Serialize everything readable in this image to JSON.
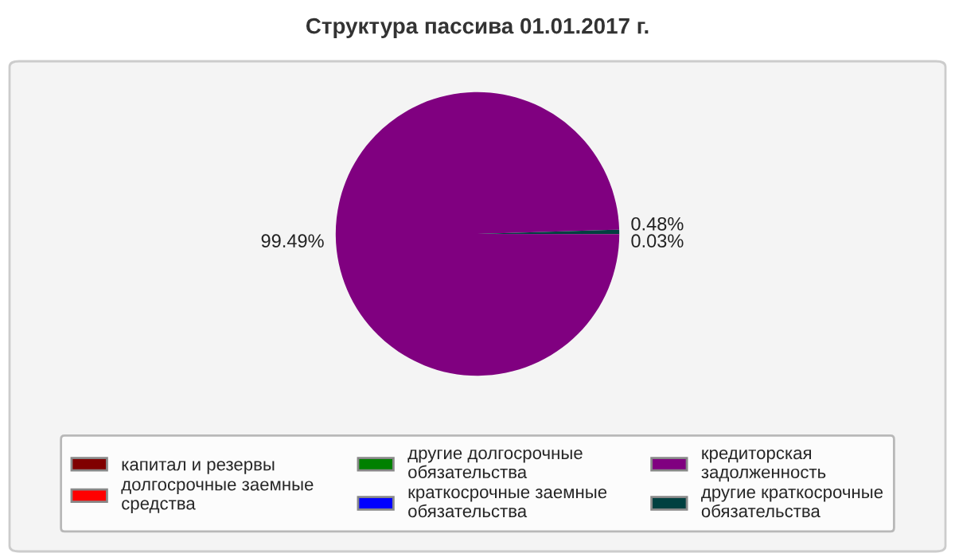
{
  "chart_data": {
    "type": "pie",
    "title": "Структура пассива 01.01.2017 г.",
    "categories": [
      "капитал и резервы",
      "долгосрочные заемные средства",
      "другие долгосрочные обязательства",
      "краткосрочные заемные обязательства",
      "кредиторская задолженность",
      "другие краткосрочные обязательства"
    ],
    "values": [
      0.03,
      0,
      0,
      0,
      99.49,
      0.48
    ],
    "value_labels": [
      "0.03%",
      null,
      null,
      null,
      "99.49%",
      "0.48%"
    ],
    "colors": [
      "#800000",
      "#ff0000",
      "#008000",
      "#0000ff",
      "#800080",
      "#004040"
    ],
    "legend": "bottom"
  }
}
